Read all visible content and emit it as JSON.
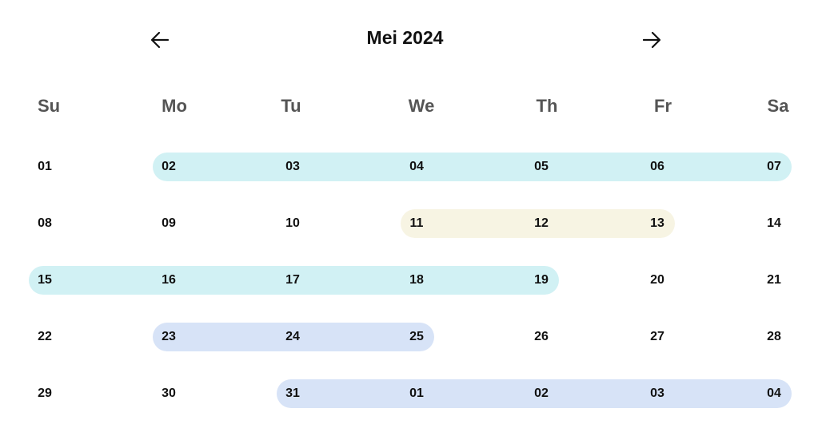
{
  "header": {
    "title": "Mei 2024",
    "prev_icon": "arrow-left-icon",
    "next_icon": "arrow-right-icon"
  },
  "weekdays": [
    "Su",
    "Mo",
    "Tu",
    "We",
    "Th",
    "Fr",
    "Sa"
  ],
  "weeks": [
    [
      "01",
      "02",
      "03",
      "04",
      "05",
      "06",
      "07"
    ],
    [
      "08",
      "09",
      "10",
      "11",
      "12",
      "13",
      "14"
    ],
    [
      "15",
      "16",
      "17",
      "18",
      "19",
      "20",
      "21"
    ],
    [
      "22",
      "23",
      "24",
      "25",
      "26",
      "27",
      "28"
    ],
    [
      "29",
      "30",
      "31",
      "01",
      "02",
      "03",
      "04"
    ]
  ],
  "ranges": [
    {
      "week": 0,
      "start_col": 1,
      "end_col": 6,
      "color": "#d1f1f4"
    },
    {
      "week": 1,
      "start_col": 3,
      "end_col": 5,
      "color": "#f7f4e3"
    },
    {
      "week": 2,
      "start_col": 0,
      "end_col": 4,
      "color": "#d1f1f4"
    },
    {
      "week": 3,
      "start_col": 1,
      "end_col": 3,
      "color": "#d7e3f7"
    },
    {
      "week": 4,
      "start_col": 2,
      "end_col": 6,
      "color": "#d7e3f7"
    }
  ]
}
